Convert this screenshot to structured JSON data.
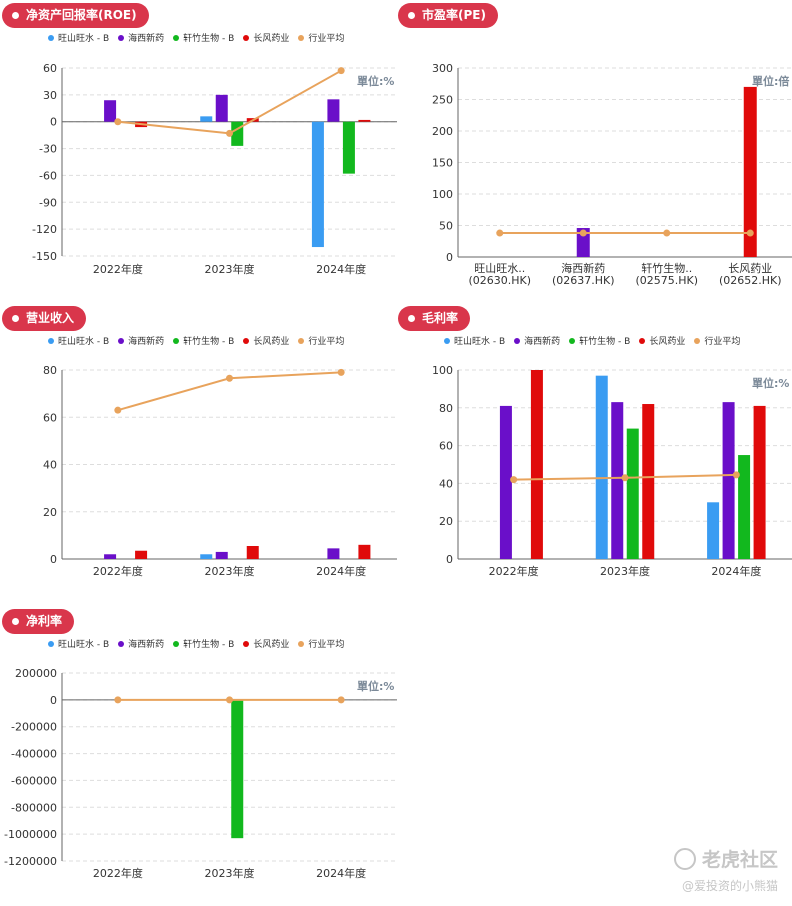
{
  "colors": {
    "pill": "#d9364b",
    "series": [
      "#3a9cf2",
      "#6a0fc9",
      "#12b81e",
      "#e00a0a"
    ],
    "average": "#e8a35c",
    "axis": "#666666",
    "grid": "#dddddd"
  },
  "legend": [
    "旺山旺水 - B",
    "海西新药",
    "轩竹生物 - B",
    "长风药业",
    "行业平均"
  ],
  "watermark": {
    "brand": "老虎社区",
    "user": "@爱投资的小熊猫"
  },
  "chart_data": [
    {
      "id": "roe",
      "type": "bar",
      "title": "净资产回报率(ROE)",
      "unit": "單位:%",
      "categories": [
        "2022年度",
        "2023年度",
        "2024年度"
      ],
      "yticks": [
        60,
        30,
        0,
        -30,
        -60,
        -90,
        -120,
        -150
      ],
      "ylim": [
        -150,
        60
      ],
      "series": [
        {
          "name": "旺山旺水 - B",
          "values": [
            null,
            6,
            -140
          ]
        },
        {
          "name": "海西新药",
          "values": [
            24,
            30,
            25
          ]
        },
        {
          "name": "轩竹生物 - B",
          "values": [
            null,
            -27,
            -58
          ]
        },
        {
          "name": "长风药业",
          "values": [
            -6,
            4,
            2
          ]
        }
      ],
      "average": {
        "name": "行业平均",
        "values": [
          0,
          -13,
          57
        ]
      }
    },
    {
      "id": "pe",
      "type": "bar",
      "title": "市盈率(PE)",
      "unit": "單位:倍",
      "categories": [
        [
          "旺山旺水..",
          "(02630.HK)"
        ],
        [
          "海西新药",
          "(02637.HK)"
        ],
        [
          "轩竹生物..",
          "(02575.HK)"
        ],
        [
          "长风药业",
          "(02652.HK)"
        ]
      ],
      "yticks": [
        300,
        250,
        200,
        150,
        100,
        50,
        0
      ],
      "ylim": [
        0,
        300
      ],
      "values": [
        0,
        46,
        0,
        270
      ],
      "average": {
        "name": "行业平均",
        "values": [
          38,
          38,
          38,
          38
        ]
      }
    },
    {
      "id": "revenue",
      "type": "bar",
      "title": "营业收入",
      "unit": "",
      "categories": [
        "2022年度",
        "2023年度",
        "2024年度"
      ],
      "yticks": [
        80,
        60,
        40,
        20,
        0
      ],
      "ylim": [
        0,
        80
      ],
      "series": [
        {
          "name": "旺山旺水 - B",
          "values": [
            null,
            2,
            null
          ]
        },
        {
          "name": "海西新药",
          "values": [
            2,
            3,
            4.5
          ]
        },
        {
          "name": "轩竹生物 - B",
          "values": [
            null,
            null,
            null
          ]
        },
        {
          "name": "长风药业",
          "values": [
            3.5,
            5.5,
            6
          ]
        }
      ],
      "average": {
        "name": "行业平均",
        "values": [
          63,
          76.5,
          79
        ]
      }
    },
    {
      "id": "gross_margin",
      "type": "bar",
      "title": "毛利率",
      "unit": "單位:%",
      "categories": [
        "2022年度",
        "2023年度",
        "2024年度"
      ],
      "yticks": [
        100,
        80,
        60,
        40,
        20,
        0
      ],
      "ylim": [
        0,
        100
      ],
      "series": [
        {
          "name": "旺山旺水 - B",
          "values": [
            null,
            97,
            30
          ]
        },
        {
          "name": "海西新药",
          "values": [
            81,
            83,
            83
          ]
        },
        {
          "name": "轩竹生物 - B",
          "values": [
            null,
            69,
            55
          ]
        },
        {
          "name": "长风药业",
          "values": [
            100,
            82,
            81
          ]
        }
      ],
      "average": {
        "name": "行业平均",
        "values": [
          42,
          43,
          44.5
        ]
      }
    },
    {
      "id": "net_margin",
      "type": "bar",
      "title": "净利率",
      "unit": "單位:%",
      "categories": [
        "2022年度",
        "2023年度",
        "2024年度"
      ],
      "yticks": [
        200000,
        0,
        -200000,
        -400000,
        -600000,
        -800000,
        -1000000,
        -1200000
      ],
      "ylim": [
        -1200000,
        200000
      ],
      "series": [
        {
          "name": "旺山旺水 - B",
          "values": [
            null,
            null,
            null
          ]
        },
        {
          "name": "海西新药",
          "values": [
            null,
            null,
            null
          ]
        },
        {
          "name": "轩竹生物 - B",
          "values": [
            null,
            -1030000,
            null
          ]
        },
        {
          "name": "长风药业",
          "values": [
            null,
            null,
            null
          ]
        }
      ],
      "average": {
        "name": "行业平均",
        "values": [
          0,
          0,
          0
        ]
      }
    }
  ]
}
